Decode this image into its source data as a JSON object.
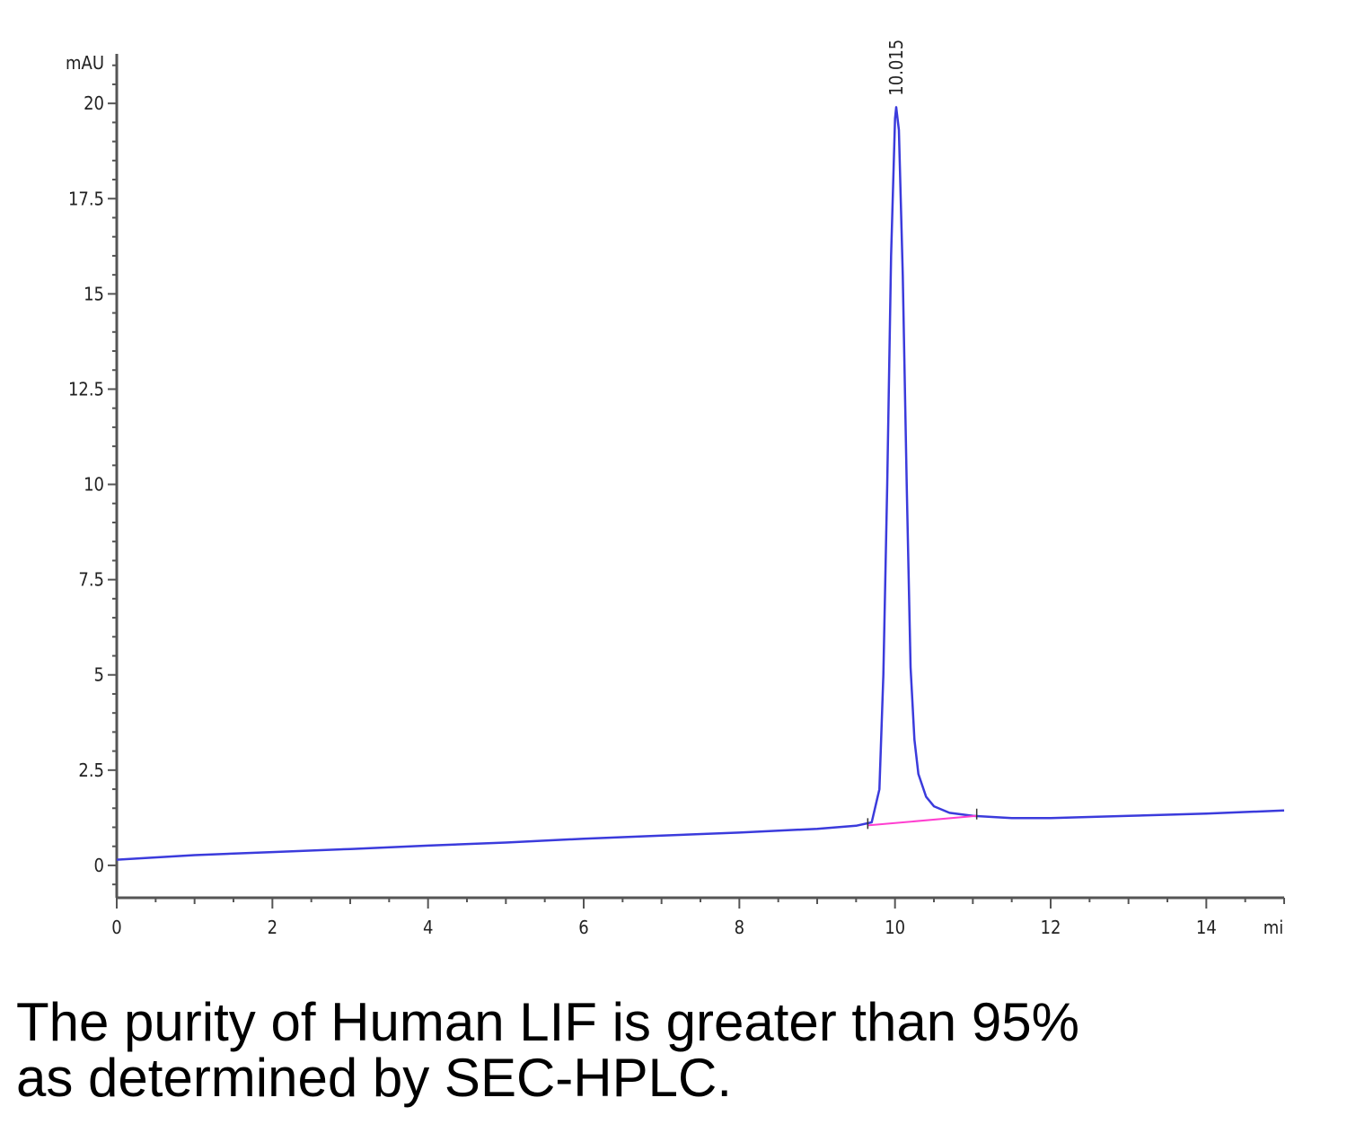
{
  "chart_data": {
    "type": "line",
    "ylabel": "mAU",
    "xlabel": "mi",
    "xlim": [
      0,
      15
    ],
    "ylim": [
      -0.85,
      21.3
    ],
    "x_ticks": [
      0,
      2,
      4,
      6,
      8,
      10,
      12,
      14
    ],
    "x_tick_labels": [
      "0",
      "2",
      "4",
      "6",
      "8",
      "10",
      "12",
      "14"
    ],
    "y_ticks": [
      0,
      2.5,
      5,
      7.5,
      10,
      12.5,
      15,
      17.5,
      20
    ],
    "y_tick_labels": [
      "0",
      "2.5",
      "5",
      "7.5",
      "10",
      "12.5",
      "15",
      "17.5",
      "20"
    ],
    "grid": false,
    "series": [
      {
        "color": "#3b3bdc",
        "x": [
          0,
          1,
          2,
          3,
          4,
          5,
          6,
          7,
          8,
          9,
          9.5,
          9.7,
          9.8,
          9.85,
          9.9,
          9.95,
          10.0,
          10.015,
          10.05,
          10.1,
          10.15,
          10.2,
          10.25,
          10.3,
          10.4,
          10.5,
          10.7,
          11.0,
          11.5,
          12,
          13,
          14,
          15
        ],
        "y": [
          0.15,
          0.27,
          0.35,
          0.43,
          0.52,
          0.6,
          0.7,
          0.78,
          0.86,
          0.96,
          1.04,
          1.13,
          2.0,
          5.0,
          10.0,
          16.0,
          19.6,
          19.9,
          19.3,
          15.5,
          10.0,
          5.2,
          3.3,
          2.4,
          1.8,
          1.55,
          1.38,
          1.3,
          1.24,
          1.24,
          1.3,
          1.36,
          1.44
        ]
      },
      {
        "color": "#ff3fd0",
        "x": [
          9.65,
          11.05
        ],
        "y": [
          1.05,
          1.3
        ]
      }
    ],
    "annotations": [
      {
        "text": "10.015",
        "x": 10.015,
        "y": 20.2
      }
    ]
  },
  "caption": {
    "line1": "The purity of Human LIF is greater than 95%",
    "line2": "as determined by SEC-HPLC."
  }
}
